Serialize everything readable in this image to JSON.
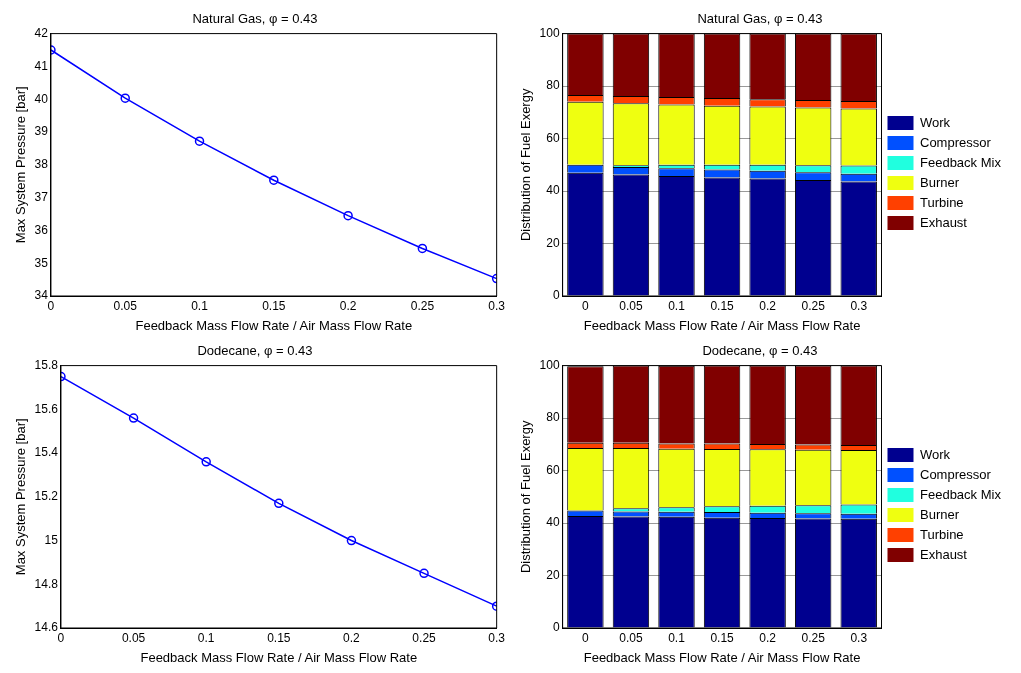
{
  "chart_data": [
    {
      "type": "line",
      "title": "Natural Gas, φ = 0.43",
      "xlabel": "Feedback Mass Flow Rate / Air Mass Flow Rate",
      "ylabel": "Max System Pressure [bar]",
      "x": [
        0,
        0.05,
        0.1,
        0.15,
        0.2,
        0.25,
        0.3
      ],
      "xlim": [
        0,
        0.3
      ],
      "xticks": [
        0,
        0.05,
        0.1,
        0.15,
        0.2,
        0.25,
        0.3
      ],
      "ylim": [
        34,
        42
      ],
      "yticks": [
        34,
        35,
        36,
        37,
        38,
        39,
        40,
        41,
        42
      ],
      "marker": "circle",
      "grid": false,
      "legend": false,
      "series": [
        {
          "color": "#0000ff",
          "values": [
            41.5,
            40.03,
            38.72,
            37.53,
            36.45,
            35.45,
            34.53
          ]
        }
      ]
    },
    {
      "type": "bar",
      "stacked": true,
      "title": "Natural Gas, φ = 0.43",
      "xlabel": "Feedback Mass Flow Rate / Air Mass Flow Rate",
      "ylabel": "Distribution of Fuel Exergy",
      "categories": [
        "0",
        "0.05",
        "0.1",
        "0.15",
        "0.2",
        "0.25",
        "0.3"
      ],
      "ylim": [
        0,
        100
      ],
      "yticks": [
        0,
        20,
        40,
        60,
        80,
        100
      ],
      "grid": "y",
      "legend": "right",
      "series": [
        {
          "name": "Work",
          "color": "#00008f",
          "values": [
            47,
            46.3,
            45.7,
            45.2,
            44.8,
            44.2,
            43.6
          ]
        },
        {
          "name": "Compressor",
          "color": "#0050ff",
          "values": [
            3,
            2.9,
            3,
            3,
            2.9,
            3,
            3
          ]
        },
        {
          "name": "Feedback Mix",
          "color": "#20ffdf",
          "values": [
            0,
            0.6,
            1.3,
            1.8,
            2.3,
            2.6,
            3.1
          ]
        },
        {
          "name": "Burner",
          "color": "#efff10",
          "values": [
            24,
            23.7,
            23,
            22.5,
            22.2,
            22,
            21.8
          ]
        },
        {
          "name": "Turbine",
          "color": "#ff4000",
          "values": [
            2.6,
            2.7,
            2.8,
            3,
            2.8,
            2.9,
            2.8
          ]
        },
        {
          "name": "Exhaust",
          "color": "#800000",
          "values": [
            23.4,
            23.8,
            24.2,
            24.5,
            25,
            25.3,
            25.7
          ]
        }
      ]
    },
    {
      "type": "line",
      "title": "Dodecane, φ = 0.43",
      "xlabel": "Feedback Mass Flow Rate / Air Mass Flow Rate",
      "ylabel": "Max System Pressure [bar]",
      "x": [
        0,
        0.05,
        0.1,
        0.15,
        0.2,
        0.25,
        0.3
      ],
      "xlim": [
        0,
        0.3
      ],
      "xticks": [
        0,
        0.05,
        0.1,
        0.15,
        0.2,
        0.25,
        0.3
      ],
      "ylim": [
        14.6,
        15.8
      ],
      "yticks": [
        14.6,
        14.8,
        15,
        15.2,
        15.4,
        15.6,
        15.8
      ],
      "marker": "circle",
      "grid": false,
      "legend": false,
      "series": [
        {
          "color": "#0000ff",
          "values": [
            15.75,
            15.56,
            15.36,
            15.17,
            15.0,
            14.85,
            14.7
          ]
        }
      ]
    },
    {
      "type": "bar",
      "stacked": true,
      "title": "Dodecane, φ = 0.43",
      "xlabel": "Feedback Mass Flow Rate / Air Mass Flow Rate",
      "ylabel": "Distribution of Fuel Exergy",
      "categories": [
        "0",
        "0.05",
        "0.1",
        "0.15",
        "0.2",
        "0.25",
        "0.3"
      ],
      "ylim": [
        0,
        100
      ],
      "yticks": [
        0,
        20,
        40,
        60,
        80,
        100
      ],
      "grid": "y",
      "legend": "right",
      "series": [
        {
          "name": "Work",
          "color": "#00008f",
          "values": [
            42.7,
            42.5,
            42.4,
            42,
            41.9,
            41.7,
            41.6
          ]
        },
        {
          "name": "Compressor",
          "color": "#0050ff",
          "values": [
            2.1,
            1.9,
            1.9,
            2.2,
            2,
            2,
            1.9
          ]
        },
        {
          "name": "Feedback Mix",
          "color": "#20ffdf",
          "values": [
            null,
            1.2,
            1.7,
            2.2,
            2.7,
            3.1,
            3.6
          ]
        },
        {
          "name": "Burner",
          "color": "#efff10",
          "values": [
            23.8,
            23,
            22.3,
            21.8,
            21.5,
            21.1,
            20.7
          ]
        },
        {
          "name": "Turbine",
          "color": "#ff4000",
          "values": [
            2,
            2,
            2,
            2.1,
            2,
            2,
            1.9
          ]
        },
        {
          "name": "Exhaust",
          "color": "#800000",
          "values": [
            29.2,
            29.4,
            29.6,
            29.7,
            29.9,
            30.1,
            30.3
          ]
        }
      ]
    }
  ]
}
